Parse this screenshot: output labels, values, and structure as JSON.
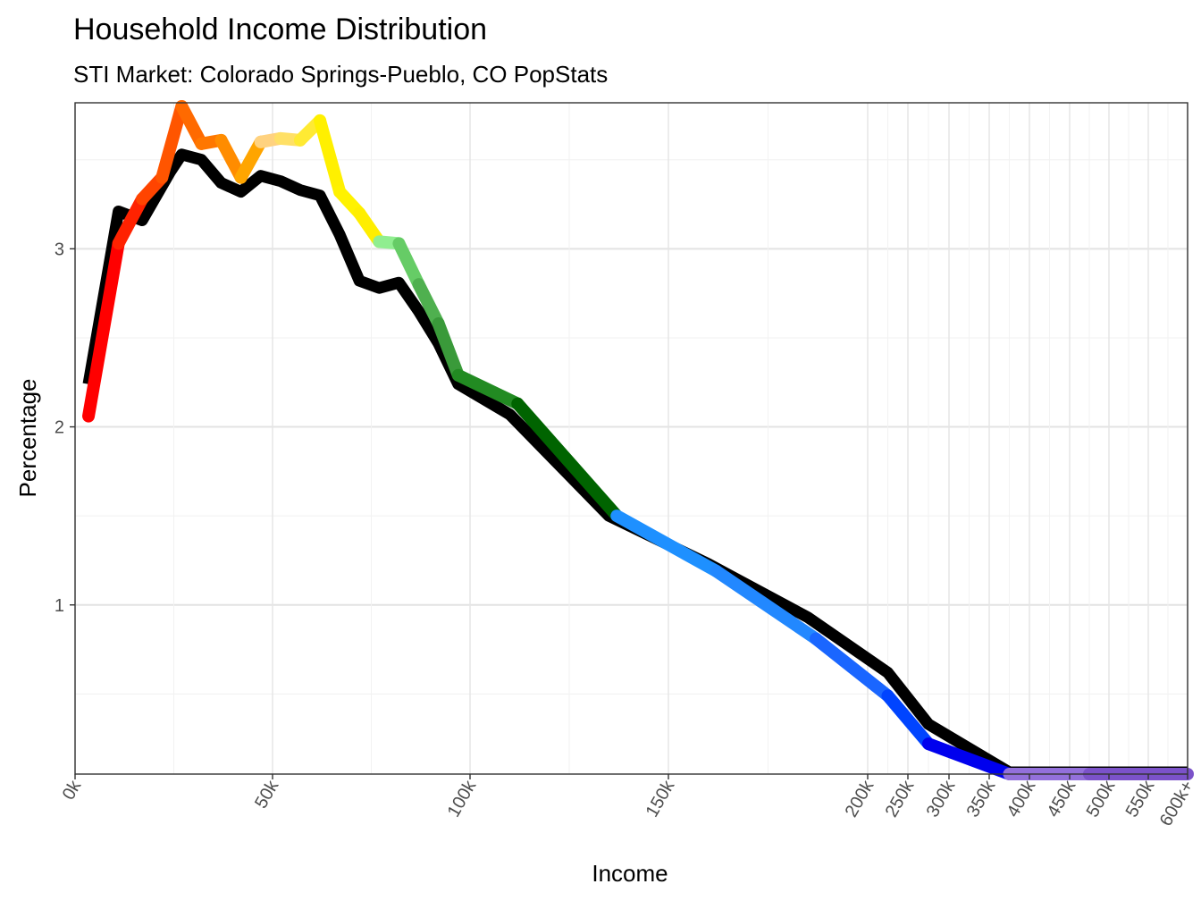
{
  "chart_data": {
    "type": "line",
    "title": "Household Income Distribution",
    "subtitle": "STI Market: Colorado Springs-Pueblo, CO PopStats",
    "xlabel": "Income",
    "ylabel": "Percentage",
    "ylim": [
      0.05,
      3.82
    ],
    "y_ticks": [
      1,
      2,
      3
    ],
    "x_ticks": [
      "0k",
      "50k",
      "100k",
      "150k",
      "200k",
      "250k",
      "300k",
      "350k",
      "400k",
      "450k",
      "500k",
      "550k",
      "600k+"
    ],
    "grid": true,
    "series": [
      {
        "color": "#000000",
        "points": [
          {
            "x": "3.4k",
            "y": 2.24
          },
          {
            "x": "11k",
            "y": 3.21
          },
          {
            "x": "17k",
            "y": 3.16
          },
          {
            "x": "24k",
            "y": 3.43
          },
          {
            "x": "27k",
            "y": 3.53
          },
          {
            "x": "32k",
            "y": 3.5
          },
          {
            "x": "37k",
            "y": 3.37
          },
          {
            "x": "42k",
            "y": 3.32
          },
          {
            "x": "47k",
            "y": 3.41
          },
          {
            "x": "52k",
            "y": 3.38
          },
          {
            "x": "57k",
            "y": 3.33
          },
          {
            "x": "62k",
            "y": 3.3
          },
          {
            "x": "67k",
            "y": 3.08
          },
          {
            "x": "72k",
            "y": 2.82
          },
          {
            "x": "77k",
            "y": 2.78
          },
          {
            "x": "82k",
            "y": 2.81
          },
          {
            "x": "87k",
            "y": 2.65
          },
          {
            "x": "92k",
            "y": 2.47
          },
          {
            "x": "97k",
            "y": 2.24
          },
          {
            "x": "110k",
            "y": 2.07
          },
          {
            "x": "135k",
            "y": 1.5
          },
          {
            "x": "160k",
            "y": 1.23
          },
          {
            "x": "185k",
            "y": 0.93
          },
          {
            "x": "225k",
            "y": 0.62
          },
          {
            "x": "275k",
            "y": 0.33
          },
          {
            "x": "375k",
            "y": 0.06
          },
          {
            "x": "475k",
            "y": 0.06
          },
          {
            "x": "600k+",
            "y": 0.06
          }
        ]
      },
      {
        "colors": [
          "#ff0000",
          "#ff2200",
          "#ff4400",
          "#ff5500",
          "#ff6a00",
          "#ff7700",
          "#ff8c00",
          "#ffa500",
          "#ffd27f",
          "#ffe066",
          "#ffea33",
          "#fff000",
          "#fff200",
          "#ffee00",
          "#90ee90",
          "#66cc66",
          "#4fb04f",
          "#3a9a3a",
          "#228b22",
          "#006400",
          "#1e90ff",
          "#2288ff",
          "#1a66ff",
          "#0044ff",
          "#0000ee",
          "#9370db",
          "#7b52c9",
          "#6a3fbf"
        ],
        "points": [
          {
            "x": "3.4k",
            "y": 2.06
          },
          {
            "x": "11k",
            "y": 3.03
          },
          {
            "x": "17k",
            "y": 3.28
          },
          {
            "x": "22k",
            "y": 3.4
          },
          {
            "x": "27k",
            "y": 3.8
          },
          {
            "x": "32k",
            "y": 3.59
          },
          {
            "x": "37k",
            "y": 3.61
          },
          {
            "x": "42k",
            "y": 3.4
          },
          {
            "x": "47k",
            "y": 3.6
          },
          {
            "x": "52k",
            "y": 3.62
          },
          {
            "x": "57k",
            "y": 3.61
          },
          {
            "x": "62k",
            "y": 3.72
          },
          {
            "x": "67k",
            "y": 3.32
          },
          {
            "x": "72k",
            "y": 3.2
          },
          {
            "x": "77k",
            "y": 3.04
          },
          {
            "x": "82k",
            "y": 3.03
          },
          {
            "x": "87k",
            "y": 2.8
          },
          {
            "x": "92k",
            "y": 2.58
          },
          {
            "x": "97k",
            "y": 2.29
          },
          {
            "x": "112k",
            "y": 2.13
          },
          {
            "x": "137k",
            "y": 1.5
          },
          {
            "x": "162k",
            "y": 1.19
          },
          {
            "x": "187k",
            "y": 0.81
          },
          {
            "x": "225k",
            "y": 0.49
          },
          {
            "x": "275k",
            "y": 0.22
          },
          {
            "x": "375k",
            "y": 0.05
          },
          {
            "x": "475k",
            "y": 0.05
          },
          {
            "x": "600k+",
            "y": 0.05
          }
        ]
      }
    ]
  }
}
